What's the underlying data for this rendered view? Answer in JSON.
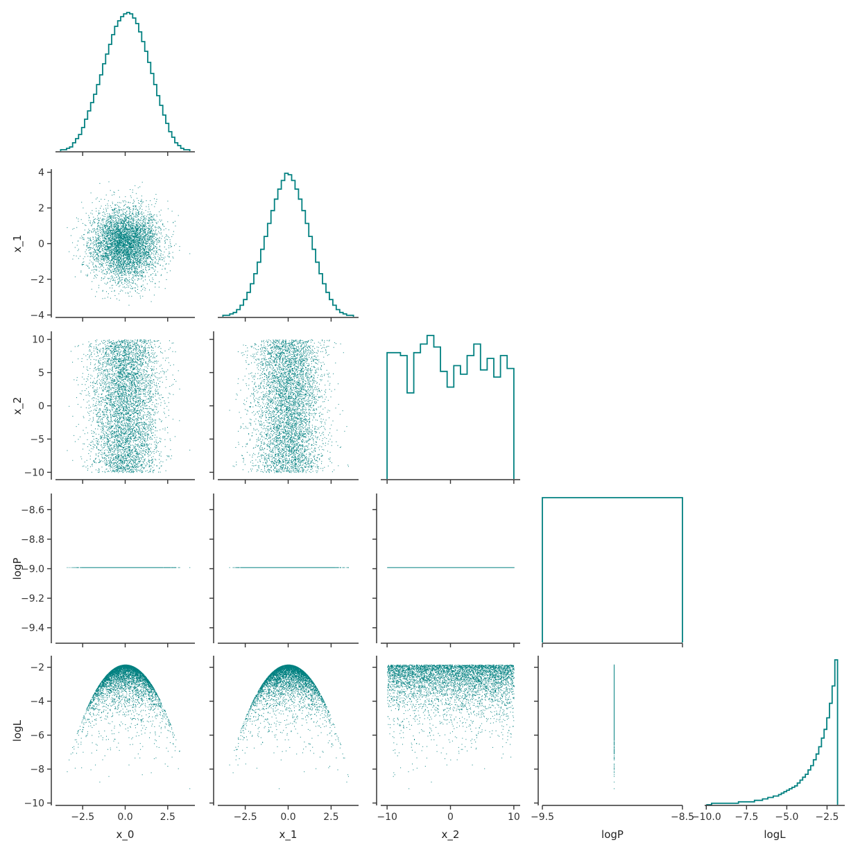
{
  "chart_data": {
    "type": "corner-plot",
    "series_color": "#008080",
    "axis_color": "#333333",
    "variables": [
      {
        "name": "x_0",
        "label": "x_0",
        "range": [
          -4.1,
          4.1
        ],
        "ticks": [
          -2.5,
          0.0,
          2.5
        ],
        "tick_labels": [
          "−2.5",
          "0.0",
          "2.5"
        ]
      },
      {
        "name": "x_1",
        "label": "x_1",
        "range": [
          -4.1,
          4.1
        ],
        "ticks": [
          -4,
          -2,
          0,
          2,
          4
        ],
        "tick_labels": [
          "−4",
          "−2",
          "0",
          "2",
          "4"
        ],
        "xticks": [
          -2.5,
          0.0,
          2.5
        ],
        "xtick_labels": [
          "−2.5",
          "0.0",
          "2.5"
        ]
      },
      {
        "name": "x_2",
        "label": "x_2",
        "range": [
          -11.0,
          11.0
        ],
        "ticks": [
          -10,
          -5,
          0,
          5,
          10
        ],
        "tick_labels": [
          "−10",
          "−5",
          "0",
          "5",
          "10"
        ],
        "xticks": [
          -10,
          0,
          10
        ],
        "xtick_labels": [
          "−10",
          "0",
          "10"
        ]
      },
      {
        "name": "logP",
        "label": "logP",
        "range": [
          -9.5,
          -8.5
        ],
        "ticks": [
          -9.4,
          -9.2,
          -9.0,
          -8.8,
          -8.6
        ],
        "tick_labels": [
          "−9.4",
          "−9.2",
          "−9.0",
          "−8.8",
          "−8.6"
        ],
        "xticks": [
          -9.5,
          -8.5
        ],
        "xtick_labels": [
          "−9.5",
          "−8.5"
        ]
      },
      {
        "name": "logL",
        "label": "logL",
        "range": [
          -10.1,
          -1.4
        ],
        "ticks": [
          -10,
          -8,
          -6,
          -4,
          -2
        ],
        "tick_labels": [
          "−10",
          "−8",
          "−6",
          "−4",
          "−2"
        ],
        "xticks": [
          -10.0,
          -7.5,
          -5.0,
          -2.5
        ],
        "xtick_labels": [
          "−10.0",
          "−7.5",
          "−5.0",
          "−2.5"
        ]
      }
    ],
    "histograms": {
      "x_0": {
        "bin_edges": [
          -3.8,
          3.8
        ],
        "counts": [
          1,
          1,
          2,
          3,
          6,
          9,
          12,
          17,
          23,
          29,
          35,
          41,
          48,
          55,
          63,
          70,
          77,
          84,
          90,
          94,
          97,
          99,
          100,
          99,
          96,
          92,
          86,
          79,
          72,
          64,
          56,
          48,
          40,
          33,
          26,
          20,
          14,
          10,
          6,
          4,
          2,
          1,
          1
        ]
      },
      "x_1": {
        "bin_edges": [
          -3.8,
          3.8
        ],
        "counts": [
          1,
          1,
          2,
          3,
          5,
          8,
          12,
          17,
          23,
          30,
          38,
          47,
          56,
          65,
          74,
          82,
          89,
          95,
          100,
          99,
          95,
          89,
          82,
          74,
          65,
          56,
          47,
          38,
          30,
          23,
          17,
          12,
          8,
          5,
          3,
          2,
          1,
          1
        ]
      },
      "x_2": {
        "bin_edges": [
          -10,
          10
        ],
        "counts": [
          88,
          88,
          86,
          60,
          88,
          94,
          100,
          92,
          75,
          64,
          79,
          73,
          86,
          94,
          76,
          84,
          71,
          86,
          77
        ]
      },
      "logP": {
        "bin_edges": [
          -9.5,
          -8.5
        ],
        "counts": [
          100
        ]
      },
      "logL": {
        "bin_edges": [
          -10.0,
          -1.85
        ],
        "counts": [
          0,
          0,
          1,
          1,
          1,
          1,
          1,
          1,
          1,
          1,
          1,
          1,
          2,
          2,
          2,
          2,
          2,
          2,
          3,
          3,
          3,
          4,
          4,
          5,
          5,
          6,
          6,
          7,
          8,
          9,
          10,
          11,
          12,
          13,
          15,
          17,
          19,
          21,
          24,
          27,
          31,
          35,
          40,
          46,
          52,
          60,
          70,
          82,
          100
        ]
      }
    },
    "scatter": {
      "n_points": 5000,
      "x_0_dist": "normal(0,1)",
      "x_1_dist": "normal(0,1)",
      "x_2_dist": "uniform(-10,10)",
      "logP_constant": -8.99,
      "logL_max": -1.84
    }
  }
}
